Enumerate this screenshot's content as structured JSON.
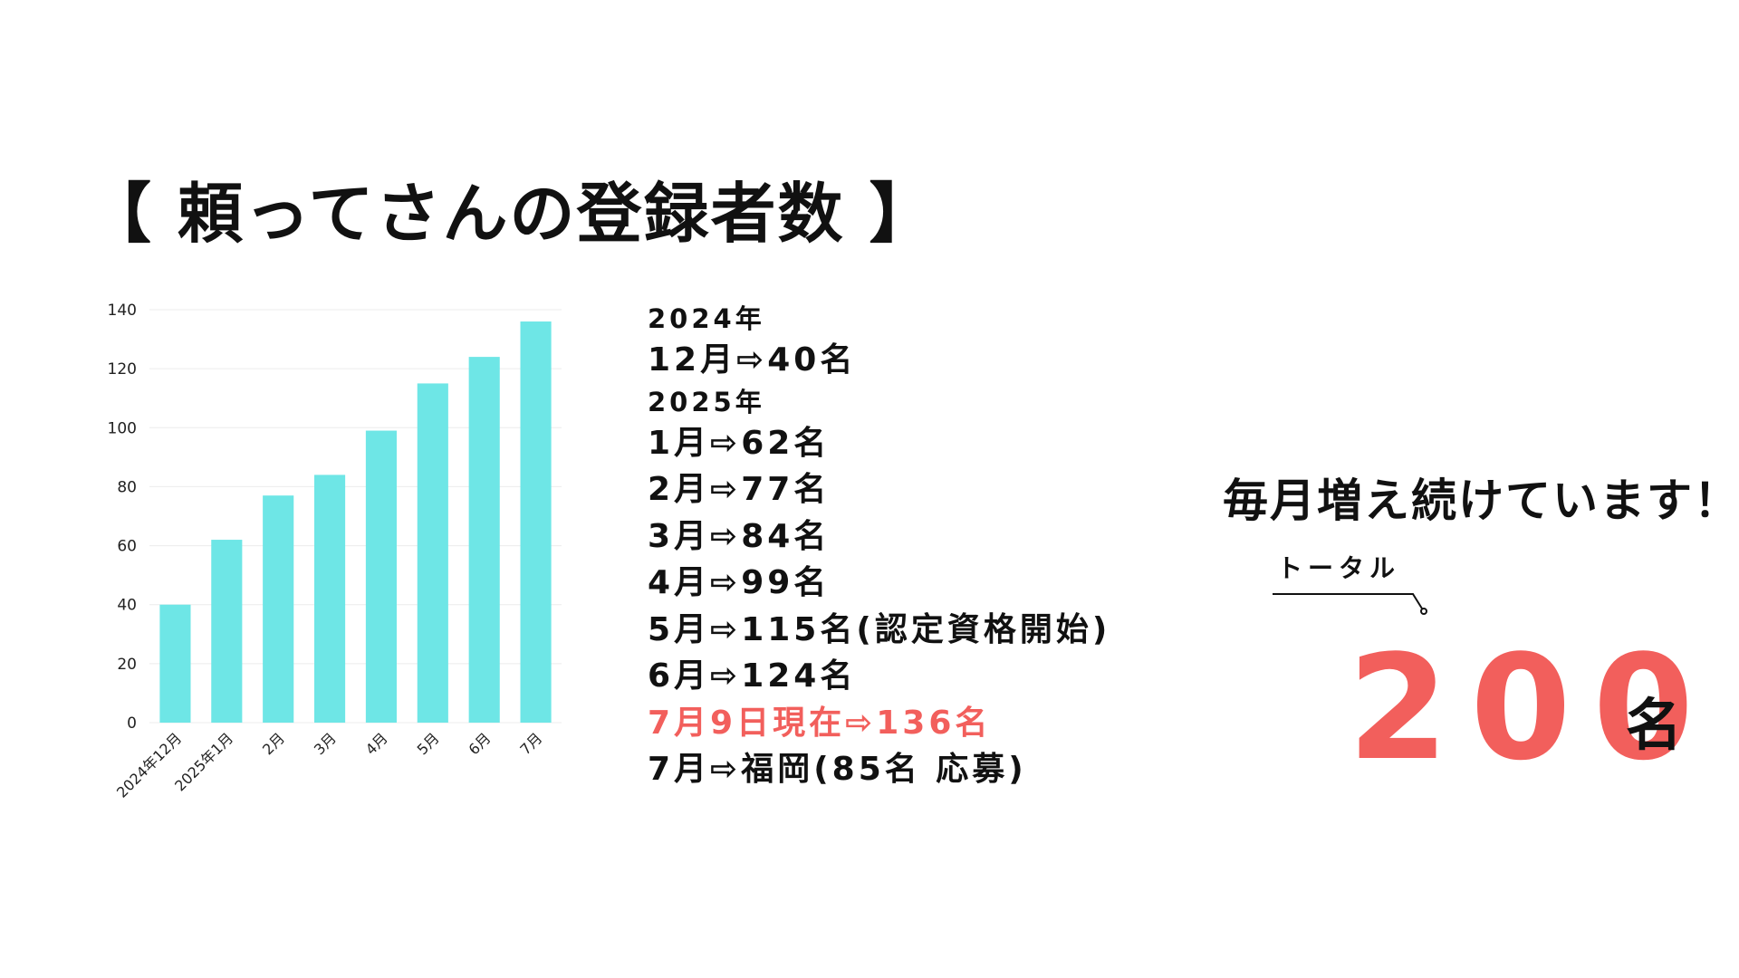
{
  "title": "【 頼ってさんの登録者数 】",
  "chart_data": {
    "type": "bar",
    "categories": [
      "2024年12月",
      "2025年1月",
      "2月",
      "3月",
      "4月",
      "5月",
      "6月",
      "7月"
    ],
    "values": [
      40,
      62,
      77,
      84,
      99,
      115,
      124,
      136
    ],
    "ylim": [
      0,
      140
    ],
    "yticks": [
      "0",
      "20",
      "40",
      "60",
      "80",
      "100",
      "120",
      "140"
    ],
    "grid": true,
    "legend": "none",
    "bar_color": "#6ee6e6"
  },
  "list": {
    "year_2024": "2024年",
    "dec": "12月⇨40名",
    "year_2025": "2025年",
    "jan": "1月⇨62名",
    "feb": "2月⇨77名",
    "mar": "3月⇨84名",
    "apr": "4月⇨99名",
    "may": "5月⇨115名(認定資格開始)",
    "jun": "6月⇨124名",
    "jul_current": "7月9日現在⇨136名",
    "jul_fukuoka": "7月⇨福岡(85名 応募)"
  },
  "summary": {
    "slogan": "毎月増え続けています！",
    "total_label": "トータル",
    "total_value": "200",
    "total_unit": "名"
  },
  "colors": {
    "highlight": "#f25f5c",
    "bar": "#6ee6e6",
    "text": "#111111"
  }
}
